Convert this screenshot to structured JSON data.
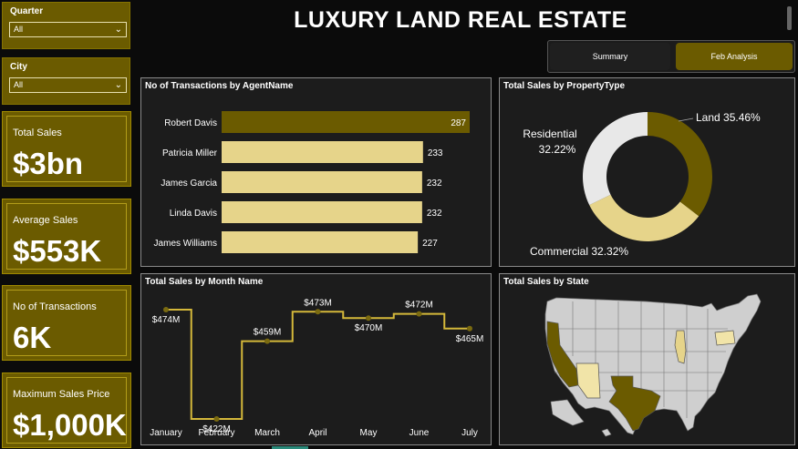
{
  "filters": {
    "quarter": {
      "label": "Quarter",
      "value": "All"
    },
    "city": {
      "label": "City",
      "value": "All"
    }
  },
  "kpis": [
    {
      "label": "Total Sales",
      "value": "$3bn"
    },
    {
      "label": "Average Sales",
      "value": "$553K"
    },
    {
      "label": "No of Transactions",
      "value": "6K"
    },
    {
      "label": "Maximum Sales Price",
      "value": "$1,000K"
    }
  ],
  "header": {
    "title": "LUXURY LAND REAL ESTATE"
  },
  "tabs": [
    {
      "label": "Summary",
      "active": false
    },
    {
      "label": "Feb Analysis",
      "active": true
    }
  ],
  "visuals": {
    "agents_title": "No of Transactions by AgentName",
    "property_title": "Total Sales by PropertyType",
    "month_title": "Total Sales by Month Name",
    "state_title": "Total Sales by State"
  },
  "colors": {
    "dark_gold": "#6b5b00",
    "light_gold": "#e6d48a",
    "light_grey": "#e8e8e8",
    "pale_gold": "#f1e4a8"
  },
  "chart_data": [
    {
      "type": "bar",
      "orientation": "horizontal",
      "title": "No of Transactions by AgentName",
      "categories": [
        "Robert Davis",
        "Patricia Miller",
        "James Garcia",
        "Linda Davis",
        "James Williams"
      ],
      "values": [
        287,
        233,
        232,
        232,
        227
      ],
      "data_labels": [
        "287",
        "233",
        "232",
        "232",
        "227"
      ],
      "highlight_color": "#6b5b00",
      "bar_color": "#e6d48a"
    },
    {
      "type": "pie",
      "donut": true,
      "title": "Total Sales by PropertyType",
      "slices": [
        {
          "label": "Land",
          "value": 35.46,
          "text": "Land 35.46%",
          "color": "#6b5b00"
        },
        {
          "label": "Commercial",
          "value": 32.32,
          "text": "Commercial 32.32%",
          "color": "#e6d48a"
        },
        {
          "label": "Residential",
          "value": 32.22,
          "text": "Residential 32.22%",
          "color": "#e8e8e8"
        }
      ]
    },
    {
      "type": "line",
      "step": true,
      "title": "Total Sales by Month Name",
      "x": [
        "January",
        "February",
        "March",
        "April",
        "May",
        "June",
        "July"
      ],
      "values": [
        474,
        422,
        459,
        473,
        470,
        472,
        465
      ],
      "data_labels": [
        "$474M",
        "$422M",
        "$459M",
        "$473M",
        "$470M",
        "$472M",
        "$465M"
      ],
      "unit": "M"
    }
  ],
  "map": {
    "title": "Total Sales by State",
    "highlighted_states": [
      {
        "state": "Texas",
        "color": "#6b5b00"
      },
      {
        "state": "California",
        "color": "#6b5b00"
      },
      {
        "state": "Arizona",
        "color": "#f1e4a8"
      },
      {
        "state": "Illinois",
        "color": "#e6d48a"
      },
      {
        "state": "Pennsylvania",
        "color": "#f1e4a8"
      }
    ]
  }
}
